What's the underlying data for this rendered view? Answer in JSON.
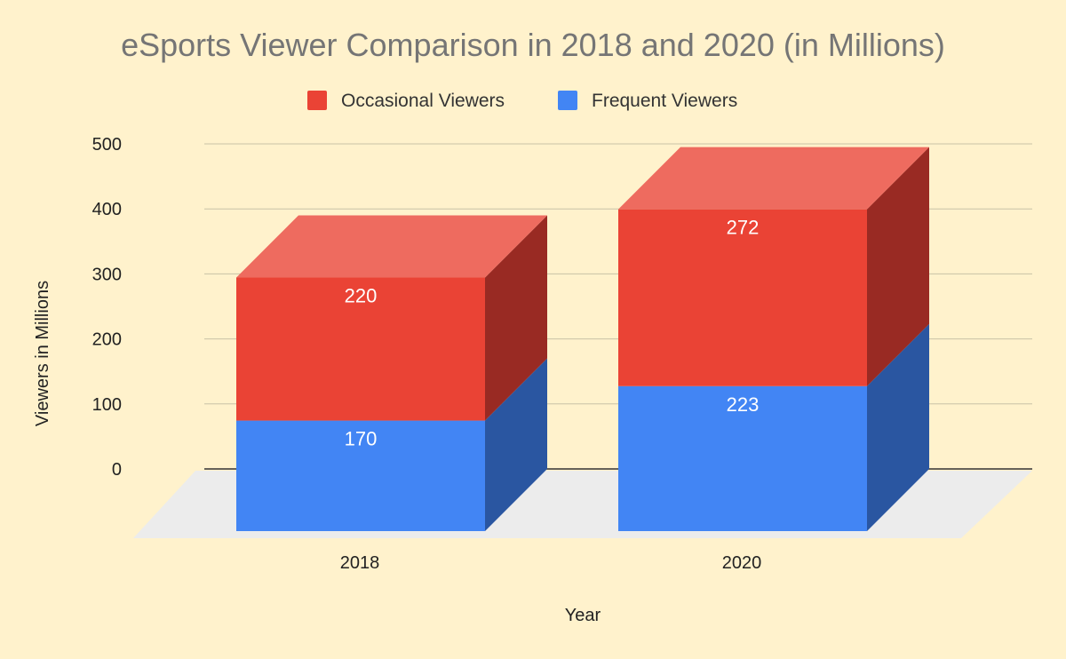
{
  "chart_data": {
    "type": "bar",
    "stacked": true,
    "three_d": true,
    "title": "eSports Viewer Comparison in 2018 and 2020 (in Millions)",
    "xlabel": "Year",
    "ylabel": "Viewers in Millions",
    "categories": [
      "2018",
      "2020"
    ],
    "series": [
      {
        "name": "Frequent Viewers",
        "values": [
          170,
          223
        ],
        "color": "#4285f4",
        "side_color": "#2a56a1"
      },
      {
        "name": "Occasional Viewers",
        "values": [
          220,
          272
        ],
        "color": "#ea4335",
        "side_color": "#992a23",
        "top_color": "#ee6b5f"
      }
    ],
    "legend_order": [
      "Occasional Viewers",
      "Frequent Viewers"
    ],
    "y_ticks": [
      "0",
      "100",
      "200",
      "300",
      "400",
      "500"
    ],
    "ylim": [
      0,
      500
    ],
    "grid": true,
    "legend_position": "top",
    "colors": {
      "background": "#fff2cc",
      "grid": "#c8c2a6",
      "floor": "#ececec",
      "title": "#757575",
      "text": "#222222",
      "data_label": "#ffffff"
    }
  }
}
